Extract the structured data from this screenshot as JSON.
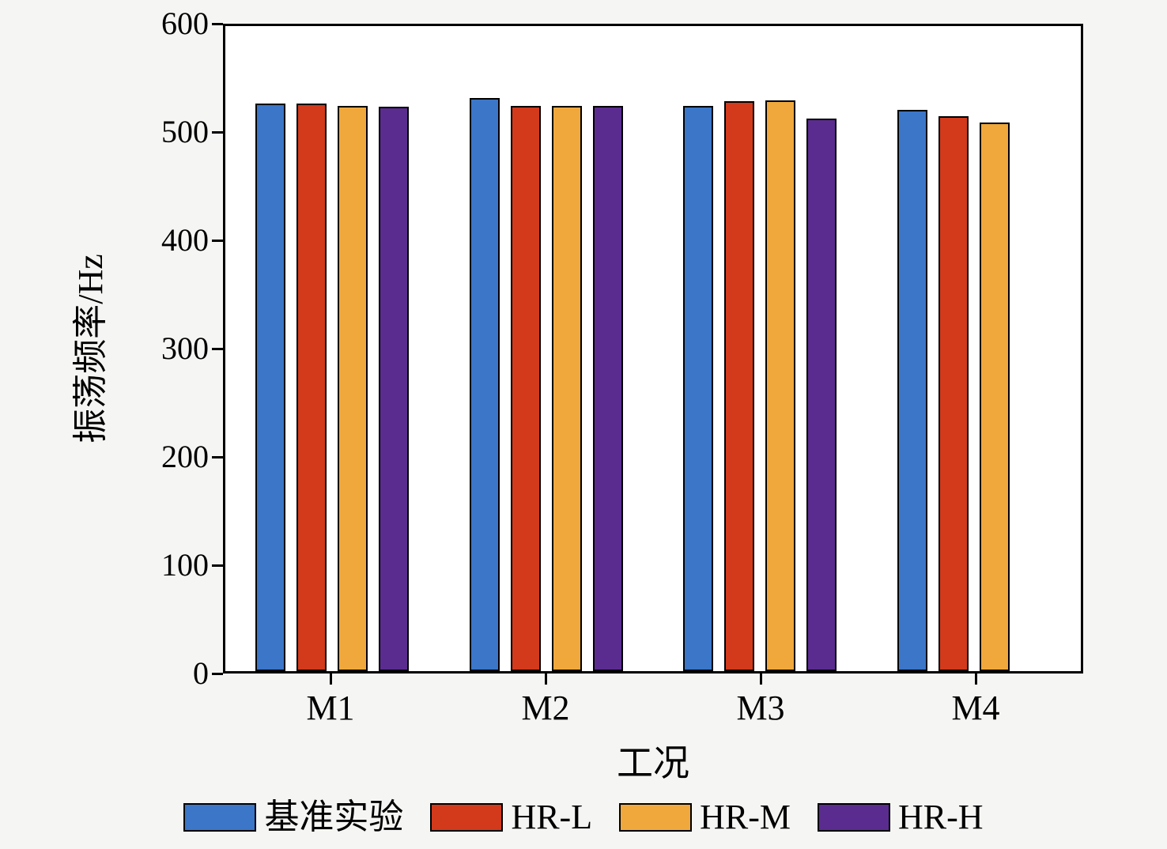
{
  "chart_data": {
    "type": "bar",
    "title": "",
    "xlabel": "工况",
    "ylabel": "振荡频率/Hz",
    "ylim": [
      0,
      600
    ],
    "yticks": [
      0,
      100,
      200,
      300,
      400,
      500,
      600
    ],
    "categories": [
      "M1",
      "M2",
      "M3",
      "M4"
    ],
    "series": [
      {
        "name": "基准实验",
        "color": "#3b76c8",
        "values": [
          528,
          533,
          526,
          522
        ]
      },
      {
        "name": "HR-L",
        "color": "#d23a1b",
        "values": [
          528,
          526,
          530,
          516
        ]
      },
      {
        "name": "HR-M",
        "color": "#f0a83c",
        "values": [
          526,
          526,
          531,
          510
        ]
      },
      {
        "name": "HR-H",
        "color": "#5b2c8f",
        "values": [
          525,
          526,
          514,
          null
        ]
      }
    ],
    "grid": false,
    "legend_position": "bottom"
  },
  "layout_text": {
    "note": ""
  }
}
